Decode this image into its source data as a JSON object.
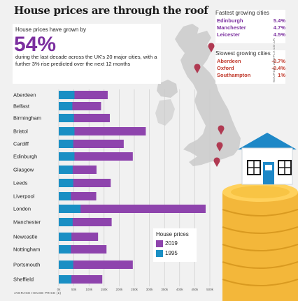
{
  "title": "House prices are through the roof",
  "intro": {
    "lead": "House prices have grown by",
    "stat": "54%",
    "description": "during the last decade across the UK's 20 major cities, with a further 3% rise predicted over the next 12 months"
  },
  "fastest": {
    "title": "Fastest growing cities",
    "items": [
      {
        "city": "Edinburgh",
        "pct": "5.4%"
      },
      {
        "city": "Manchester",
        "pct": "4.7%"
      },
      {
        "city": "Leicester",
        "pct": "4.5%"
      }
    ]
  },
  "slowest": {
    "title": "Slowest growing cities",
    "items": [
      {
        "city": "Aberdeen",
        "pct": "-0.7%"
      },
      {
        "city": "Oxford",
        "pct": "-0.4%"
      },
      {
        "city": "Southampton",
        "pct": "1%"
      }
    ]
  },
  "source": "SOURCE: ZOOPLA.CO.UK",
  "legend": {
    "title": "House prices",
    "items": [
      {
        "label": "2019",
        "color": "#8e44ad"
      },
      {
        "label": "1995",
        "color": "#1a8fc4"
      }
    ]
  },
  "colors": {
    "bar_2019": "#8e44ad",
    "bar_1995": "#1a8fc4",
    "map": "#d0d0d0",
    "pin": "#b03a52",
    "bg": "#f1f1f1"
  },
  "chart_data": {
    "type": "bar",
    "orientation": "horizontal",
    "categories": [
      "Aberdeen",
      "Belfast",
      "Birmingham",
      "Bristol",
      "Cardiff",
      "Edinburgh",
      "Glasgow",
      "Leeds",
      "Liverpool",
      "London",
      "Manchester",
      "Newcastle",
      "Nottingham",
      "Portsmouth",
      "Sheffield"
    ],
    "series": [
      {
        "name": "2019",
        "values": [
          162000,
          140000,
          169000,
          288000,
          215000,
          245000,
          125000,
          172000,
          124000,
          486000,
          175000,
          130000,
          158000,
          245000,
          144000
        ]
      },
      {
        "name": "1995",
        "values": [
          52000,
          45000,
          50000,
          52000,
          48000,
          52000,
          46000,
          48000,
          40000,
          72000,
          46000,
          42000,
          40000,
          48000,
          42000
        ]
      }
    ],
    "overlap": true,
    "xlabel": "AVERAGE HOUSE PRICE (£)",
    "xlim": [
      0,
      500000
    ],
    "xticks": [
      0,
      50000,
      100000,
      150000,
      200000,
      250000,
      300000,
      350000,
      400000,
      450000,
      500000
    ],
    "xtick_labels": [
      "0k",
      "50k",
      "100k",
      "150k",
      "200k",
      "250k",
      "300k",
      "350k",
      "400k",
      "450k",
      "500k"
    ],
    "grid": true,
    "legend_position": "bottom-right"
  }
}
